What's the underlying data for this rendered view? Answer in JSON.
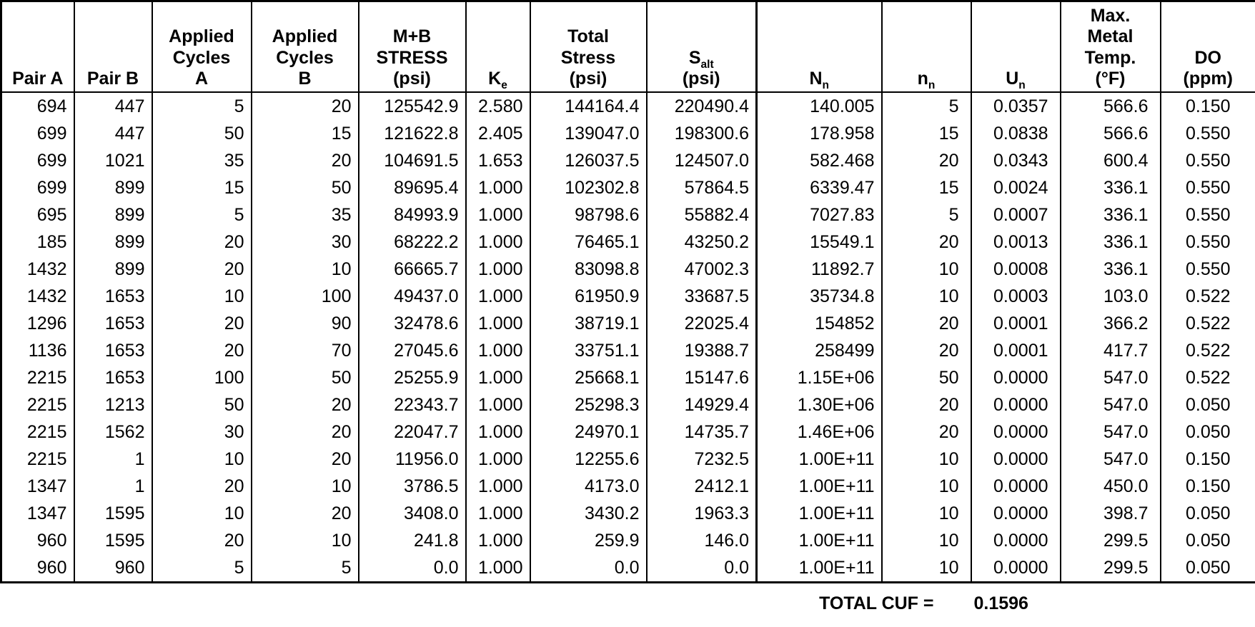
{
  "table": {
    "columns": [
      {
        "label": "Pair A"
      },
      {
        "label": "Pair B"
      },
      {
        "label": "Applied\nCycles\nA"
      },
      {
        "label": "Applied\nCycles\nB"
      },
      {
        "label": "M+B\nSTRESS\n(psi)"
      },
      {
        "base": "K",
        "sub": "e"
      },
      {
        "label": "Total\nStress\n(psi)"
      },
      {
        "base": "S",
        "sub": "alt",
        "unit": "(psi)"
      },
      {
        "base": "N",
        "sub": "n"
      },
      {
        "base": "n",
        "sub": "n"
      },
      {
        "base": "U",
        "sub": "n"
      },
      {
        "label": "Max.\nMetal\nTemp.\n(°F)"
      },
      {
        "label": "DO\n(ppm)"
      }
    ],
    "rows": [
      [
        "694",
        "447",
        "5",
        "20",
        "125542.9",
        "2.580",
        "144164.4",
        "220490.4",
        "140.005",
        "5",
        "0.0357",
        "566.6",
        "0.150"
      ],
      [
        "699",
        "447",
        "50",
        "15",
        "121622.8",
        "2.405",
        "139047.0",
        "198300.6",
        "178.958",
        "15",
        "0.0838",
        "566.6",
        "0.550"
      ],
      [
        "699",
        "1021",
        "35",
        "20",
        "104691.5",
        "1.653",
        "126037.5",
        "124507.0",
        "582.468",
        "20",
        "0.0343",
        "600.4",
        "0.550"
      ],
      [
        "699",
        "899",
        "15",
        "50",
        "89695.4",
        "1.000",
        "102302.8",
        "57864.5",
        "6339.47",
        "15",
        "0.0024",
        "336.1",
        "0.550"
      ],
      [
        "695",
        "899",
        "5",
        "35",
        "84993.9",
        "1.000",
        "98798.6",
        "55882.4",
        "7027.83",
        "5",
        "0.0007",
        "336.1",
        "0.550"
      ],
      [
        "185",
        "899",
        "20",
        "30",
        "68222.2",
        "1.000",
        "76465.1",
        "43250.2",
        "15549.1",
        "20",
        "0.0013",
        "336.1",
        "0.550"
      ],
      [
        "1432",
        "899",
        "20",
        "10",
        "66665.7",
        "1.000",
        "83098.8",
        "47002.3",
        "11892.7",
        "10",
        "0.0008",
        "336.1",
        "0.550"
      ],
      [
        "1432",
        "1653",
        "10",
        "100",
        "49437.0",
        "1.000",
        "61950.9",
        "33687.5",
        "35734.8",
        "10",
        "0.0003",
        "103.0",
        "0.522"
      ],
      [
        "1296",
        "1653",
        "20",
        "90",
        "32478.6",
        "1.000",
        "38719.1",
        "22025.4",
        "154852",
        "20",
        "0.0001",
        "366.2",
        "0.522"
      ],
      [
        "1136",
        "1653",
        "20",
        "70",
        "27045.6",
        "1.000",
        "33751.1",
        "19388.7",
        "258499",
        "20",
        "0.0001",
        "417.7",
        "0.522"
      ],
      [
        "2215",
        "1653",
        "100",
        "50",
        "25255.9",
        "1.000",
        "25668.1",
        "15147.6",
        "1.15E+06",
        "50",
        "0.0000",
        "547.0",
        "0.522"
      ],
      [
        "2215",
        "1213",
        "50",
        "20",
        "22343.7",
        "1.000",
        "25298.3",
        "14929.4",
        "1.30E+06",
        "20",
        "0.0000",
        "547.0",
        "0.050"
      ],
      [
        "2215",
        "1562",
        "30",
        "20",
        "22047.7",
        "1.000",
        "24970.1",
        "14735.7",
        "1.46E+06",
        "20",
        "0.0000",
        "547.0",
        "0.050"
      ],
      [
        "2215",
        "1",
        "10",
        "20",
        "11956.0",
        "1.000",
        "12255.6",
        "7232.5",
        "1.00E+11",
        "10",
        "0.0000",
        "547.0",
        "0.150"
      ],
      [
        "1347",
        "1",
        "20",
        "10",
        "3786.5",
        "1.000",
        "4173.0",
        "2412.1",
        "1.00E+11",
        "10",
        "0.0000",
        "450.0",
        "0.150"
      ],
      [
        "1347",
        "1595",
        "10",
        "20",
        "3408.0",
        "1.000",
        "3430.2",
        "1963.3",
        "1.00E+11",
        "10",
        "0.0000",
        "398.7",
        "0.050"
      ],
      [
        "960",
        "1595",
        "20",
        "10",
        "241.8",
        "1.000",
        "259.9",
        "146.0",
        "1.00E+11",
        "10",
        "0.0000",
        "299.5",
        "0.050"
      ],
      [
        "960",
        "960",
        "5",
        "5",
        "0.0",
        "1.000",
        "0.0",
        "0.0",
        "1.00E+11",
        "10",
        "0.0000",
        "299.5",
        "0.050"
      ]
    ],
    "footer": {
      "label": "TOTAL CUF =",
      "value": "0.1596"
    }
  }
}
